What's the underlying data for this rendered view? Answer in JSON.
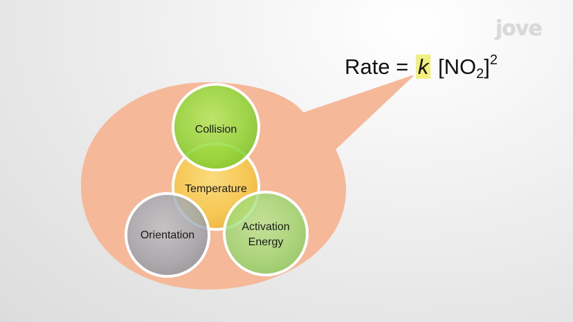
{
  "branding": {
    "logo_text": "jove"
  },
  "equation": {
    "lhs": "Rate",
    "equals": "=",
    "constant": "k",
    "open_bracket": "[NO",
    "subscript": "2",
    "close_bracket": "]",
    "exponent": "2"
  },
  "diagram": {
    "circles": [
      {
        "label": "Collision",
        "color": "#8ed83a"
      },
      {
        "label": "Temperature",
        "color": "#f6c94c"
      },
      {
        "label": "Orientation",
        "color": "#9aa6b4"
      },
      {
        "label_line1": "Activation",
        "label_line2": "Energy",
        "color": "#97db74"
      }
    ],
    "bubble_color": "#f5b898"
  }
}
